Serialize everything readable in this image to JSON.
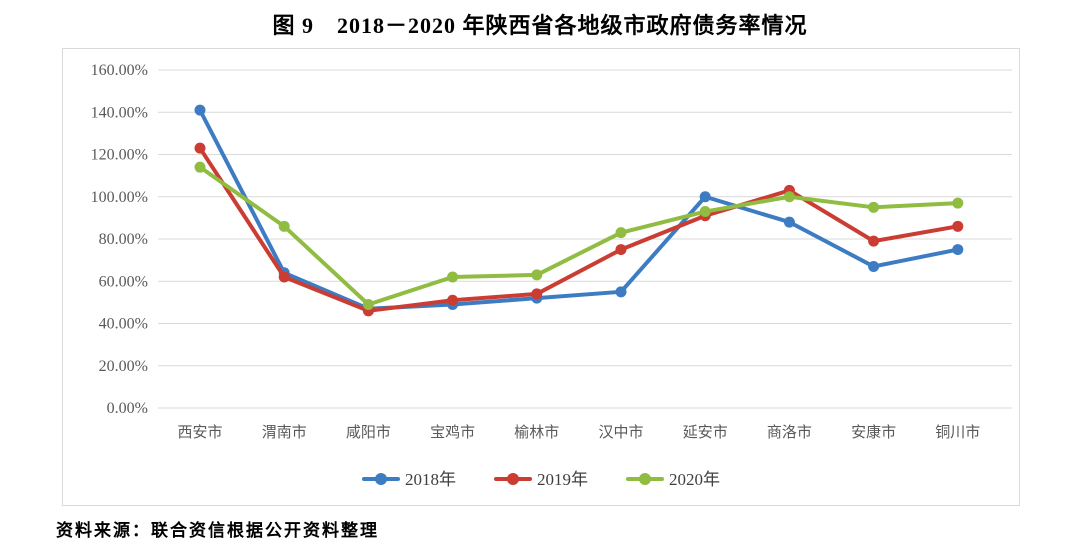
{
  "title": "图 9　2018－2020 年陕西省各地级市政府债务率情况",
  "source_note": "资料来源：联合资信根据公开资料整理",
  "colors": {
    "grid": "#d9d9d9",
    "axis_text": "#595959",
    "legend_text": "#404040",
    "frame_border": "#d9d9d9"
  },
  "chart_data": {
    "type": "line",
    "title": "图 9　2018－2020 年陕西省各地级市政府债务率情况",
    "categories": [
      "西安市",
      "渭南市",
      "咸阳市",
      "宝鸡市",
      "榆林市",
      "汉中市",
      "延安市",
      "商洛市",
      "安康市",
      "铜川市"
    ],
    "series": [
      {
        "name": "2018年",
        "color": "#3d7cc2",
        "values": [
          141,
          64,
          47,
          49,
          52,
          55,
          100,
          88,
          67,
          75
        ]
      },
      {
        "name": "2019年",
        "color": "#cb3d33",
        "values": [
          123,
          62,
          46,
          51,
          54,
          75,
          91,
          103,
          79,
          86
        ]
      },
      {
        "name": "2020年",
        "color": "#90bc42",
        "values": [
          114,
          86,
          49,
          62,
          63,
          83,
          93,
          100,
          95,
          97
        ]
      }
    ],
    "xlabel": "",
    "ylabel": "",
    "ylim": [
      0,
      160
    ],
    "y_tick_step": 20,
    "y_tick_labels": [
      "0.00%",
      "20.00%",
      "40.00%",
      "60.00%",
      "80.00%",
      "100.00%",
      "120.00%",
      "140.00%",
      "160.00%"
    ],
    "grid": true,
    "legend_position": "bottom",
    "marker": "circle"
  }
}
